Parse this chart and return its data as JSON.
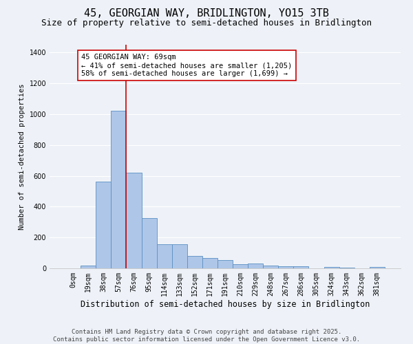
{
  "title_line1": "45, GEORGIAN WAY, BRIDLINGTON, YO15 3TB",
  "title_line2": "Size of property relative to semi-detached houses in Bridlington",
  "xlabel": "Distribution of semi-detached houses by size in Bridlington",
  "ylabel": "Number of semi-detached properties",
  "footer_line1": "Contains HM Land Registry data © Crown copyright and database right 2025.",
  "footer_line2": "Contains public sector information licensed under the Open Government Licence v3.0.",
  "bar_labels": [
    "0sqm",
    "19sqm",
    "38sqm",
    "57sqm",
    "76sqm",
    "95sqm",
    "114sqm",
    "133sqm",
    "152sqm",
    "171sqm",
    "191sqm",
    "210sqm",
    "229sqm",
    "248sqm",
    "267sqm",
    "286sqm",
    "305sqm",
    "324sqm",
    "343sqm",
    "362sqm",
    "381sqm"
  ],
  "bar_values": [
    0,
    20,
    560,
    1020,
    620,
    325,
    155,
    155,
    80,
    65,
    55,
    25,
    30,
    20,
    15,
    15,
    0,
    10,
    5,
    0,
    10
  ],
  "bar_color": "#aec6e8",
  "bar_edge_color": "#5a8fc2",
  "ylim": [
    0,
    1450
  ],
  "yticks": [
    0,
    200,
    400,
    600,
    800,
    1000,
    1200,
    1400
  ],
  "red_line_x": 3.5,
  "red_line_color": "#cc0000",
  "annotation_text": "45 GEORGIAN WAY: 69sqm\n← 41% of semi-detached houses are smaller (1,205)\n58% of semi-detached houses are larger (1,699) →",
  "annotation_box_color": "#ffffff",
  "annotation_box_edge": "#cc0000",
  "bg_color": "#eef2f8",
  "grid_color": "#ffffff",
  "title1_fontsize": 11,
  "title2_fontsize": 9,
  "xlabel_fontsize": 8.5,
  "ylabel_fontsize": 7.5,
  "tick_fontsize": 7,
  "footer_fontsize": 6.5,
  "annotation_fontsize": 7.5
}
